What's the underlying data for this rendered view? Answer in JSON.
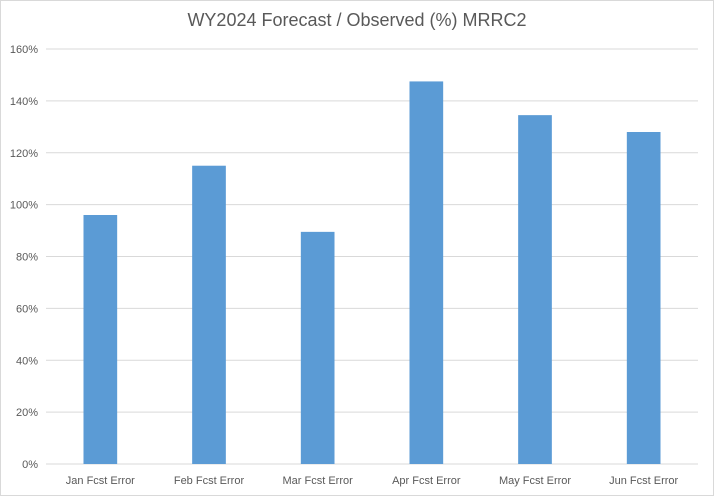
{
  "chart_data": {
    "type": "bar",
    "title": "WY2024 Forecast / Observed (%) MRRC2",
    "xlabel": "",
    "ylabel": "",
    "categories": [
      "Jan Fcst Error",
      "Feb Fcst Error",
      "Mar Fcst Error",
      "Apr Fcst Error",
      "May Fcst Error",
      "Jun Fcst Error"
    ],
    "values": [
      96,
      115,
      89.5,
      147.5,
      134.5,
      128
    ],
    "ylim": [
      0,
      160
    ],
    "yticks": [
      0,
      20,
      40,
      60,
      80,
      100,
      120,
      140,
      160
    ],
    "ytick_labels": [
      "0%",
      "20%",
      "40%",
      "60%",
      "80%",
      "100%",
      "120%",
      "140%",
      "160%"
    ],
    "grid": true,
    "legend": "none",
    "colors": {
      "bar": "#5b9bd5",
      "grid": "#d9d9d9",
      "axis_text": "#595959"
    }
  }
}
